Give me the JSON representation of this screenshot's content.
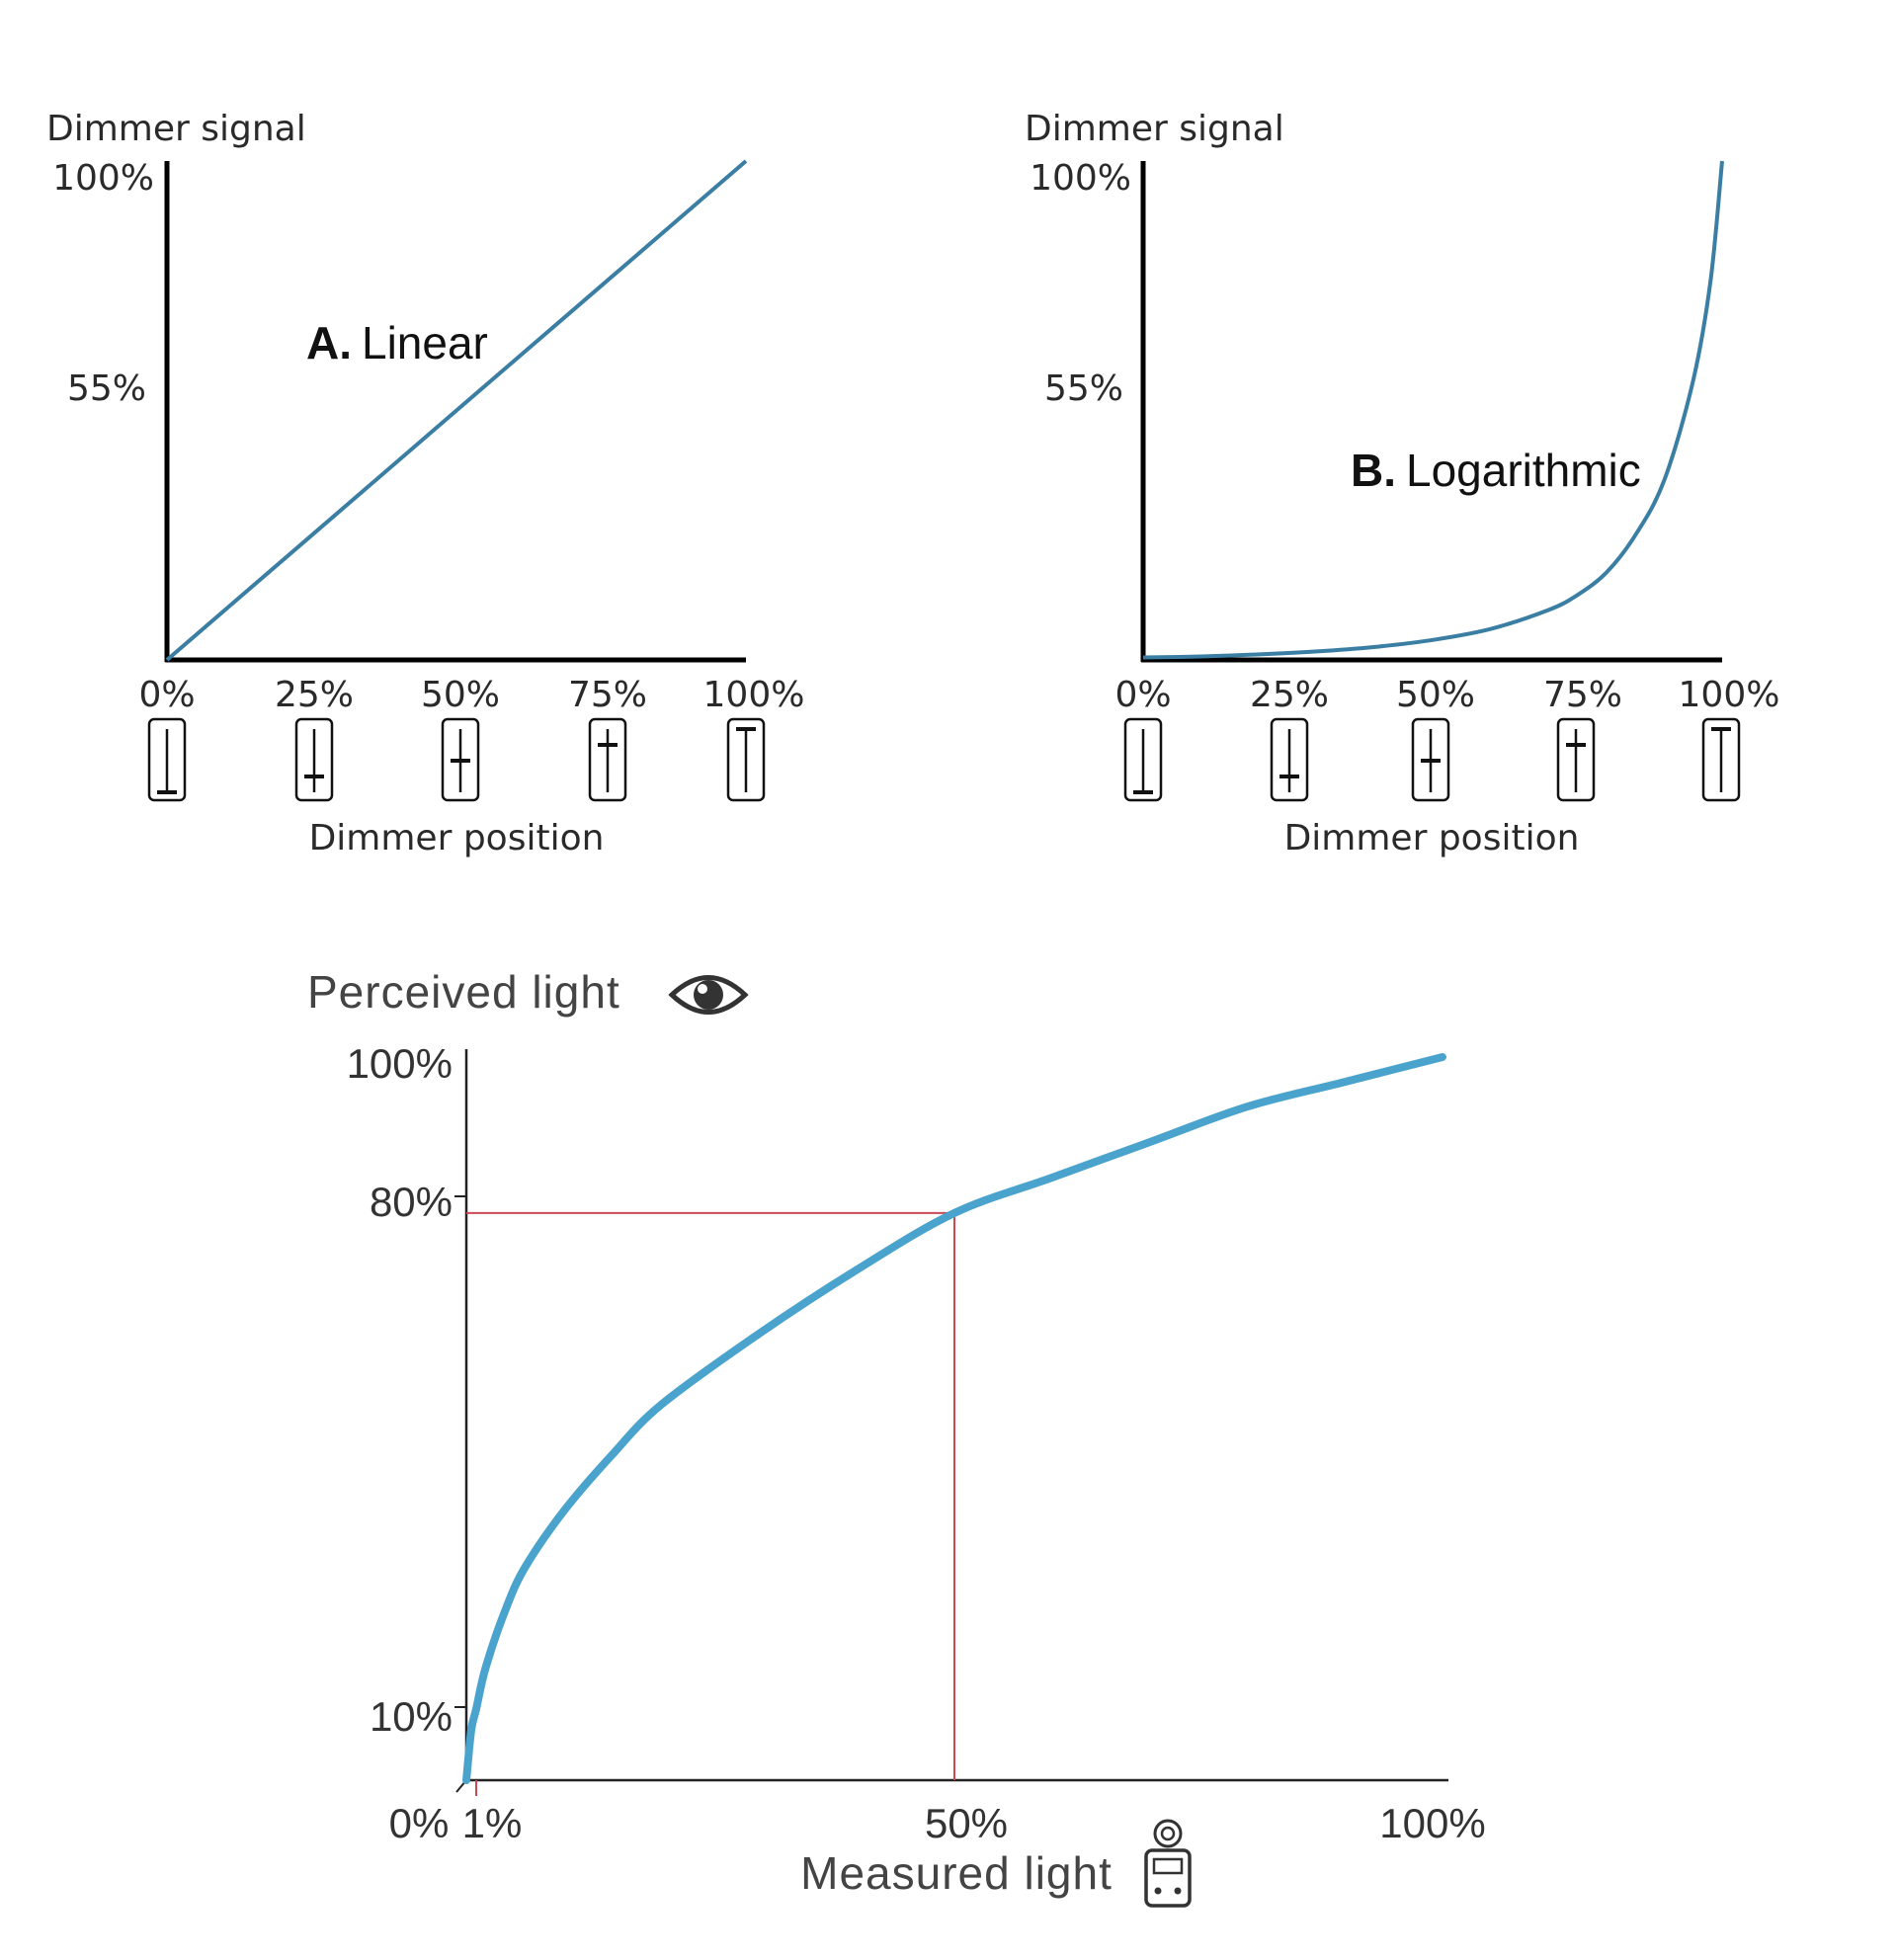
{
  "chart_data": [
    {
      "type": "line",
      "ylabel": "Dimmer signal",
      "xlabel": "Dimmer position",
      "x_ticks": [
        "0%",
        "25%",
        "50%",
        "75%",
        "100%"
      ],
      "y_ticks": [
        {
          "value": 100,
          "label": "100%"
        },
        {
          "value": 55,
          "label": "55%"
        }
      ],
      "xlim": [
        0,
        100
      ],
      "ylim": [
        0,
        100
      ],
      "series": [
        {
          "label_prefix": "A.",
          "label_name": "Linear",
          "color": "#3a7ea3",
          "x": [
            0,
            25,
            50,
            75,
            100
          ],
          "y": [
            0,
            25,
            50,
            75,
            100
          ]
        }
      ],
      "slider_positions": [
        0,
        0.25,
        0.5,
        0.75,
        1
      ]
    },
    {
      "type": "line",
      "ylabel": "Dimmer signal",
      "xlabel": "Dimmer position",
      "x_ticks": [
        "0%",
        "25%",
        "50%",
        "75%",
        "100%"
      ],
      "y_ticks": [
        {
          "value": 100,
          "label": "100%"
        },
        {
          "value": 55,
          "label": "55%"
        }
      ],
      "xlim": [
        0,
        100
      ],
      "ylim": [
        0,
        100
      ],
      "series": [
        {
          "label_prefix": "B.",
          "label_name": "Logarithmic",
          "color": "#3a7ea3",
          "x": [
            0,
            10,
            20,
            30,
            40,
            50,
            60,
            70,
            75,
            80,
            85,
            90,
            95,
            98,
            100
          ],
          "y": [
            0.5,
            0.7,
            1.1,
            1.7,
            2.6,
            4,
            6.2,
            10,
            13,
            17.5,
            25,
            36,
            56,
            76,
            100
          ]
        }
      ],
      "slider_positions": [
        0,
        0.25,
        0.5,
        0.75,
        1
      ]
    },
    {
      "type": "line",
      "ylabel": "Perceived light",
      "xlabel": "Measured light",
      "x_ticks": [
        {
          "value": 0,
          "label": "0%"
        },
        {
          "value": 1,
          "label": "1%"
        },
        {
          "value": 50,
          "label": "50%"
        },
        {
          "value": 100,
          "label": "100%"
        }
      ],
      "y_ticks": [
        {
          "value": 100,
          "label": "100%"
        },
        {
          "value": 80,
          "label": "80%"
        },
        {
          "value": 10,
          "label": "10%"
        }
      ],
      "xlim": [
        0,
        100
      ],
      "ylim": [
        0,
        100
      ],
      "series": [
        {
          "color": "#4aa3cc",
          "x": [
            0,
            0.5,
            1,
            2,
            4,
            6,
            10,
            15,
            20,
            30,
            40,
            50,
            60,
            70,
            80,
            90,
            100
          ],
          "y": [
            0,
            7,
            10,
            16,
            24,
            30,
            38,
            46,
            53,
            63,
            72,
            80,
            85,
            90,
            95,
            98.5,
            102
          ]
        }
      ],
      "guide": {
        "x": 50,
        "y": 80,
        "color": "#c94a55"
      },
      "icons": [
        "eye-icon",
        "light-meter-icon"
      ]
    }
  ]
}
